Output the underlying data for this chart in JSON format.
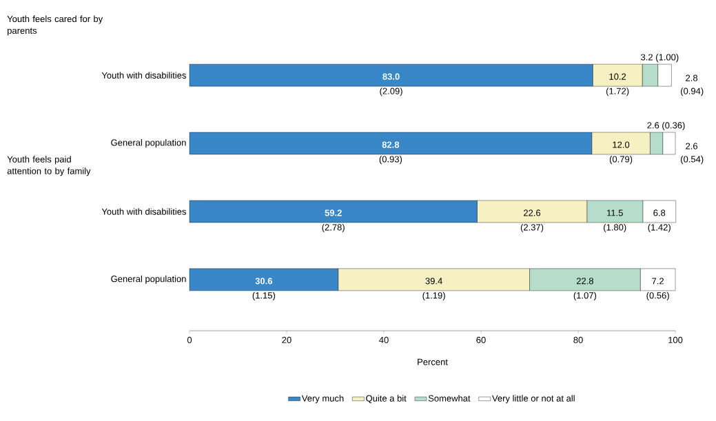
{
  "chart_data": {
    "type": "bar",
    "orientation": "horizontal",
    "stacked": true,
    "categories": [
      "Youth with disabilities",
      "General population",
      "Youth with disabilities",
      "General population"
    ],
    "annotations": [
      "Youth feels cared for by parents",
      "Youth feels paid attention to by family",
      "(2.09)",
      "(0.93)",
      "(2.78)",
      "(1.15)",
      "(1.72)",
      "(0.79)",
      "(2.37)",
      "(1.19)",
      "(1.00)",
      "(0.36)",
      "(1.80)",
      "(1.07)",
      "(0.94)",
      "(0.54)",
      "(1.42)",
      "(0.56)"
    ],
    "xlabel": "Percent",
    "xlim": [
      0,
      100
    ],
    "xticks": [
      0,
      20,
      40,
      60,
      80,
      100
    ],
    "legend": "bottom",
    "series": [
      {
        "name": "Very much",
        "color": "#3a87c8",
        "values": [
          83.0,
          82.8,
          59.2,
          30.6
        ],
        "value_labels": [
          "83.0",
          "82.8",
          "59.2",
          "30.6"
        ]
      },
      {
        "name": "Quite a bit",
        "color": "#f7f0c2",
        "values": [
          10.2,
          12.0,
          22.6,
          39.4
        ],
        "value_labels": [
          "10.2",
          "12.0",
          "22.6",
          "39.4"
        ]
      },
      {
        "name": "Somewhat",
        "color": "#b6dccb",
        "values": [
          3.2,
          2.6,
          11.5,
          22.8
        ],
        "value_labels": [
          "3.2",
          "2.6",
          "11.5",
          "22.8"
        ]
      },
      {
        "name": "Very little or not at all",
        "color": "#ffffff",
        "values": [
          2.8,
          2.6,
          6.8,
          7.2
        ],
        "value_labels": [
          "2.8",
          "2.6",
          "6.8",
          "7.2"
        ]
      }
    ]
  }
}
